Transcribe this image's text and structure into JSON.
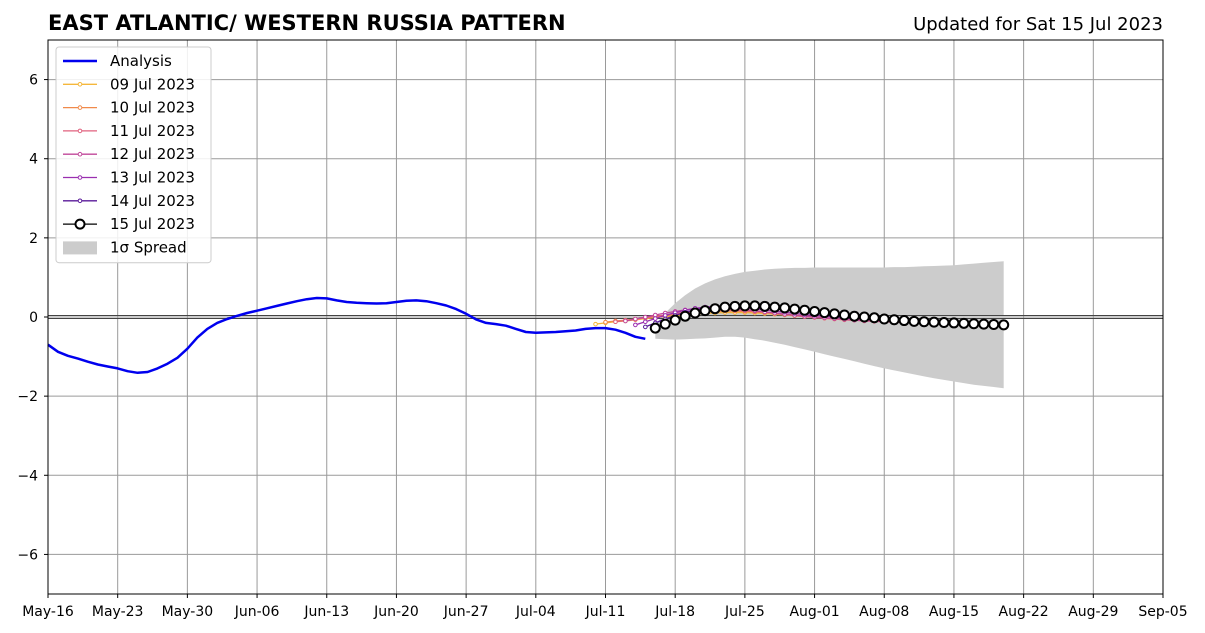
{
  "chart_data": {
    "type": "line",
    "title": "EAST ATLANTIC/ WESTERN RUSSIA PATTERN",
    "subtitle": "Updated for Sat 15 Jul 2023",
    "x_unit": "date",
    "x_range": [
      "2023-05-16",
      "2023-09-05"
    ],
    "ylim": [
      -7,
      7
    ],
    "y_ticks": [
      -6,
      -4,
      -2,
      0,
      2,
      4,
      6
    ],
    "y_tick_labels": [
      "−6",
      "−4",
      "−2",
      "0",
      "2",
      "4",
      "6"
    ],
    "x_ticks": [
      "2023-05-16",
      "2023-05-23",
      "2023-05-30",
      "2023-06-06",
      "2023-06-13",
      "2023-06-20",
      "2023-06-27",
      "2023-07-04",
      "2023-07-11",
      "2023-07-18",
      "2023-07-25",
      "2023-08-01",
      "2023-08-08",
      "2023-08-15",
      "2023-08-22",
      "2023-08-29",
      "2023-09-05"
    ],
    "x_tick_labels": [
      "May-16",
      "May-23",
      "May-30",
      "Jun-06",
      "Jun-13",
      "Jun-20",
      "Jun-27",
      "Jul-04",
      "Jul-11",
      "Jul-18",
      "Jul-25",
      "Aug-01",
      "Aug-08",
      "Aug-15",
      "Aug-22",
      "Aug-29",
      "Sep-05"
    ],
    "grid": true,
    "zero_line": true,
    "legend_position": "top-left",
    "series": [
      {
        "name": "Analysis",
        "color": "#0000ee",
        "marker": "none",
        "x": [
          "2023-05-16",
          "2023-05-17",
          "2023-05-18",
          "2023-05-19",
          "2023-05-20",
          "2023-05-21",
          "2023-05-22",
          "2023-05-23",
          "2023-05-24",
          "2023-05-25",
          "2023-05-26",
          "2023-05-27",
          "2023-05-28",
          "2023-05-29",
          "2023-05-30",
          "2023-05-31",
          "2023-06-01",
          "2023-06-02",
          "2023-06-03",
          "2023-06-04",
          "2023-06-05",
          "2023-06-06",
          "2023-06-07",
          "2023-06-08",
          "2023-06-09",
          "2023-06-10",
          "2023-06-11",
          "2023-06-12",
          "2023-06-13",
          "2023-06-14",
          "2023-06-15",
          "2023-06-16",
          "2023-06-17",
          "2023-06-18",
          "2023-06-19",
          "2023-06-20",
          "2023-06-21",
          "2023-06-22",
          "2023-06-23",
          "2023-06-24",
          "2023-06-25",
          "2023-06-26",
          "2023-06-27",
          "2023-06-28",
          "2023-06-29",
          "2023-06-30",
          "2023-07-01",
          "2023-07-02",
          "2023-07-03",
          "2023-07-04",
          "2023-07-05",
          "2023-07-06",
          "2023-07-07",
          "2023-07-08",
          "2023-07-09",
          "2023-07-10",
          "2023-07-11",
          "2023-07-12",
          "2023-07-13",
          "2023-07-14",
          "2023-07-15"
        ],
        "y": [
          -0.7,
          -0.88,
          -0.98,
          -1.05,
          -1.13,
          -1.2,
          -1.25,
          -1.3,
          -1.37,
          -1.41,
          -1.39,
          -1.3,
          -1.18,
          -1.03,
          -0.8,
          -0.52,
          -0.3,
          -0.15,
          -0.05,
          0.03,
          0.1,
          0.16,
          0.22,
          0.28,
          0.34,
          0.4,
          0.45,
          0.48,
          0.47,
          0.42,
          0.38,
          0.36,
          0.35,
          0.34,
          0.35,
          0.38,
          0.41,
          0.42,
          0.4,
          0.35,
          0.29,
          0.2,
          0.08,
          -0.06,
          -0.15,
          -0.18,
          -0.22,
          -0.3,
          -0.38,
          -0.4,
          -0.39,
          -0.38,
          -0.36,
          -0.34,
          -0.3,
          -0.28,
          -0.28,
          -0.32,
          -0.4,
          -0.5,
          -0.55
        ]
      },
      {
        "name": "09 Jul 2023",
        "color": "#f5b73b",
        "marker": "small-dot",
        "x": [
          "2023-07-10",
          "2023-07-11",
          "2023-07-12",
          "2023-07-13",
          "2023-07-14",
          "2023-07-15",
          "2023-07-16",
          "2023-07-17",
          "2023-07-18",
          "2023-07-19",
          "2023-07-20",
          "2023-07-21",
          "2023-07-22",
          "2023-07-23",
          "2023-07-24",
          "2023-07-25",
          "2023-07-26",
          "2023-07-27",
          "2023-07-28",
          "2023-07-29",
          "2023-07-30",
          "2023-07-31",
          "2023-08-01",
          "2023-08-02",
          "2023-08-03",
          "2023-08-04",
          "2023-08-05",
          "2023-08-06",
          "2023-08-07",
          "2023-08-08",
          "2023-08-09",
          "2023-08-10",
          "2023-08-11",
          "2023-08-12",
          "2023-08-13",
          "2023-08-14",
          "2023-08-15"
        ],
        "y": [
          -0.18,
          -0.15,
          -0.12,
          -0.1,
          -0.07,
          -0.04,
          -0.01,
          0.01,
          0.03,
          0.05,
          0.07,
          0.09,
          0.1,
          0.11,
          0.11,
          0.11,
          0.1,
          0.09,
          0.07,
          0.05,
          0.03,
          0.01,
          -0.01,
          -0.03,
          -0.05,
          -0.07,
          -0.08,
          -0.09,
          -0.1,
          -0.11,
          -0.12,
          -0.13,
          -0.14,
          -0.15,
          -0.16,
          -0.17,
          -0.18
        ]
      },
      {
        "name": "10 Jul 2023",
        "color": "#f08a4b",
        "marker": "small-dot",
        "x": [
          "2023-07-11",
          "2023-07-12",
          "2023-07-13",
          "2023-07-14",
          "2023-07-15",
          "2023-07-16",
          "2023-07-17",
          "2023-07-18",
          "2023-07-19",
          "2023-07-20",
          "2023-07-21",
          "2023-07-22",
          "2023-07-23",
          "2023-07-24",
          "2023-07-25",
          "2023-07-26",
          "2023-07-27",
          "2023-07-28",
          "2023-07-29",
          "2023-07-30",
          "2023-07-31",
          "2023-08-01",
          "2023-08-02",
          "2023-08-03",
          "2023-08-04",
          "2023-08-05",
          "2023-08-06",
          "2023-08-07",
          "2023-08-08",
          "2023-08-09",
          "2023-08-10",
          "2023-08-11",
          "2023-08-12",
          "2023-08-13",
          "2023-08-14",
          "2023-08-15",
          "2023-08-16"
        ],
        "y": [
          -0.13,
          -0.1,
          -0.08,
          -0.05,
          -0.02,
          0.01,
          0.04,
          0.07,
          0.09,
          0.11,
          0.13,
          0.14,
          0.15,
          0.15,
          0.14,
          0.13,
          0.11,
          0.09,
          0.07,
          0.05,
          0.02,
          0.0,
          -0.02,
          -0.04,
          -0.06,
          -0.07,
          -0.08,
          -0.09,
          -0.1,
          -0.11,
          -0.12,
          -0.13,
          -0.14,
          -0.15,
          -0.16,
          -0.17,
          -0.18
        ]
      },
      {
        "name": "11 Jul 2023",
        "color": "#e0607e",
        "marker": "small-dot",
        "x": [
          "2023-07-12",
          "2023-07-13",
          "2023-07-14",
          "2023-07-15",
          "2023-07-16",
          "2023-07-17",
          "2023-07-18",
          "2023-07-19",
          "2023-07-20",
          "2023-07-21",
          "2023-07-22",
          "2023-07-23",
          "2023-07-24",
          "2023-07-25",
          "2023-07-26",
          "2023-07-27",
          "2023-07-28",
          "2023-07-29",
          "2023-07-30",
          "2023-07-31",
          "2023-08-01",
          "2023-08-02",
          "2023-08-03",
          "2023-08-04",
          "2023-08-05",
          "2023-08-06",
          "2023-08-07",
          "2023-08-08",
          "2023-08-09",
          "2023-08-10",
          "2023-08-11",
          "2023-08-12",
          "2023-08-13",
          "2023-08-14",
          "2023-08-15",
          "2023-08-16",
          "2023-08-17"
        ],
        "y": [
          -0.12,
          -0.09,
          -0.06,
          -0.02,
          0.02,
          0.05,
          0.09,
          0.12,
          0.15,
          0.17,
          0.18,
          0.18,
          0.17,
          0.16,
          0.14,
          0.12,
          0.09,
          0.06,
          0.04,
          0.01,
          -0.01,
          -0.03,
          -0.05,
          -0.07,
          -0.08,
          -0.1,
          -0.11,
          -0.12,
          -0.13,
          -0.14,
          -0.15,
          -0.16,
          -0.17,
          -0.18,
          -0.19,
          -0.19,
          -0.2
        ]
      },
      {
        "name": "12 Jul 2023",
        "color": "#c0479a",
        "marker": "small-dot",
        "x": [
          "2023-07-13",
          "2023-07-14",
          "2023-07-15",
          "2023-07-16",
          "2023-07-17",
          "2023-07-18",
          "2023-07-19",
          "2023-07-20",
          "2023-07-21",
          "2023-07-22",
          "2023-07-23",
          "2023-07-24",
          "2023-07-25",
          "2023-07-26",
          "2023-07-27",
          "2023-07-28",
          "2023-07-29",
          "2023-07-30",
          "2023-07-31",
          "2023-08-01",
          "2023-08-02",
          "2023-08-03",
          "2023-08-04",
          "2023-08-05",
          "2023-08-06",
          "2023-08-07",
          "2023-08-08",
          "2023-08-09",
          "2023-08-10",
          "2023-08-11",
          "2023-08-12",
          "2023-08-13",
          "2023-08-14",
          "2023-08-15",
          "2023-08-16",
          "2023-08-17",
          "2023-08-18"
        ],
        "y": [
          -0.1,
          -0.05,
          0.0,
          0.05,
          0.1,
          0.14,
          0.18,
          0.21,
          0.23,
          0.24,
          0.23,
          0.21,
          0.19,
          0.16,
          0.13,
          0.1,
          0.07,
          0.04,
          0.02,
          0.0,
          -0.02,
          -0.04,
          -0.06,
          -0.08,
          -0.09,
          -0.1,
          -0.11,
          -0.12,
          -0.13,
          -0.14,
          -0.15,
          -0.16,
          -0.17,
          -0.18,
          -0.18,
          -0.19,
          -0.2
        ]
      },
      {
        "name": "13 Jul 2023",
        "color": "#9a2fb0",
        "marker": "small-dot",
        "x": [
          "2023-07-14",
          "2023-07-15",
          "2023-07-16",
          "2023-07-17",
          "2023-07-18",
          "2023-07-19",
          "2023-07-20",
          "2023-07-21",
          "2023-07-22",
          "2023-07-23",
          "2023-07-24",
          "2023-07-25",
          "2023-07-26",
          "2023-07-27",
          "2023-07-28",
          "2023-07-29",
          "2023-07-30",
          "2023-07-31",
          "2023-08-01",
          "2023-08-02",
          "2023-08-03",
          "2023-08-04",
          "2023-08-05",
          "2023-08-06",
          "2023-08-07",
          "2023-08-08",
          "2023-08-09",
          "2023-08-10",
          "2023-08-11",
          "2023-08-12",
          "2023-08-13",
          "2023-08-14",
          "2023-08-15",
          "2023-08-16",
          "2023-08-17",
          "2023-08-18",
          "2023-08-19"
        ],
        "y": [
          -0.2,
          -0.12,
          -0.04,
          0.04,
          0.11,
          0.17,
          0.22,
          0.25,
          0.27,
          0.27,
          0.26,
          0.24,
          0.21,
          0.18,
          0.15,
          0.12,
          0.09,
          0.06,
          0.04,
          0.02,
          0.0,
          -0.02,
          -0.04,
          -0.06,
          -0.07,
          -0.09,
          -0.1,
          -0.11,
          -0.12,
          -0.13,
          -0.14,
          -0.15,
          -0.16,
          -0.17,
          -0.18,
          -0.19,
          -0.2
        ]
      },
      {
        "name": "14 Jul 2023",
        "color": "#5a1a9a",
        "marker": "small-dot",
        "x": [
          "2023-07-15",
          "2023-07-16",
          "2023-07-17",
          "2023-07-18",
          "2023-07-19",
          "2023-07-20",
          "2023-07-21",
          "2023-07-22",
          "2023-07-23",
          "2023-07-24",
          "2023-07-25",
          "2023-07-26",
          "2023-07-27",
          "2023-07-28",
          "2023-07-29",
          "2023-07-30",
          "2023-07-31",
          "2023-08-01",
          "2023-08-02",
          "2023-08-03",
          "2023-08-04",
          "2023-08-05",
          "2023-08-06",
          "2023-08-07",
          "2023-08-08",
          "2023-08-09",
          "2023-08-10",
          "2023-08-11",
          "2023-08-12",
          "2023-08-13",
          "2023-08-14",
          "2023-08-15",
          "2023-08-16",
          "2023-08-17",
          "2023-08-18",
          "2023-08-19",
          "2023-08-20"
        ],
        "y": [
          -0.25,
          -0.15,
          -0.05,
          0.04,
          0.12,
          0.18,
          0.22,
          0.25,
          0.27,
          0.28,
          0.28,
          0.27,
          0.25,
          0.23,
          0.2,
          0.17,
          0.14,
          0.11,
          0.08,
          0.05,
          0.02,
          0.0,
          -0.02,
          -0.04,
          -0.06,
          -0.08,
          -0.1,
          -0.11,
          -0.12,
          -0.13,
          -0.14,
          -0.15,
          -0.16,
          -0.17,
          -0.18,
          -0.19,
          -0.2
        ]
      },
      {
        "name": "15 Jul 2023",
        "color": "#000000",
        "marker": "large-open-circle",
        "x": [
          "2023-07-16",
          "2023-07-17",
          "2023-07-18",
          "2023-07-19",
          "2023-07-20",
          "2023-07-21",
          "2023-07-22",
          "2023-07-23",
          "2023-07-24",
          "2023-07-25",
          "2023-07-26",
          "2023-07-27",
          "2023-07-28",
          "2023-07-29",
          "2023-07-30",
          "2023-07-31",
          "2023-08-01",
          "2023-08-02",
          "2023-08-03",
          "2023-08-04",
          "2023-08-05",
          "2023-08-06",
          "2023-08-07",
          "2023-08-08",
          "2023-08-09",
          "2023-08-10",
          "2023-08-11",
          "2023-08-12",
          "2023-08-13",
          "2023-08-14",
          "2023-08-15",
          "2023-08-16",
          "2023-08-17",
          "2023-08-18",
          "2023-08-19",
          "2023-08-20"
        ],
        "y": [
          -0.28,
          -0.18,
          -0.08,
          0.02,
          0.1,
          0.16,
          0.21,
          0.25,
          0.27,
          0.28,
          0.28,
          0.27,
          0.25,
          0.23,
          0.2,
          0.17,
          0.14,
          0.11,
          0.08,
          0.05,
          0.02,
          0.0,
          -0.02,
          -0.05,
          -0.07,
          -0.09,
          -0.11,
          -0.12,
          -0.13,
          -0.14,
          -0.15,
          -0.16,
          -0.17,
          -0.18,
          -0.19,
          -0.2
        ]
      }
    ],
    "spread": {
      "name": "1σ Spread",
      "color": "#cccccc",
      "x": [
        "2023-07-16",
        "2023-07-17",
        "2023-07-18",
        "2023-07-19",
        "2023-07-20",
        "2023-07-21",
        "2023-07-22",
        "2023-07-23",
        "2023-07-24",
        "2023-07-25",
        "2023-07-26",
        "2023-07-27",
        "2023-07-28",
        "2023-07-29",
        "2023-07-30",
        "2023-07-31",
        "2023-08-01",
        "2023-08-02",
        "2023-08-03",
        "2023-08-04",
        "2023-08-05",
        "2023-08-06",
        "2023-08-07",
        "2023-08-08",
        "2023-08-09",
        "2023-08-10",
        "2023-08-11",
        "2023-08-12",
        "2023-08-13",
        "2023-08-14",
        "2023-08-15",
        "2023-08-16",
        "2023-08-17",
        "2023-08-18",
        "2023-08-19",
        "2023-08-20"
      ],
      "upper": [
        -0.2,
        0.1,
        0.35,
        0.55,
        0.72,
        0.85,
        0.95,
        1.03,
        1.09,
        1.14,
        1.17,
        1.2,
        1.22,
        1.23,
        1.24,
        1.24,
        1.25,
        1.25,
        1.25,
        1.25,
        1.25,
        1.25,
        1.25,
        1.25,
        1.26,
        1.26,
        1.27,
        1.28,
        1.29,
        1.3,
        1.31,
        1.33,
        1.35,
        1.37,
        1.39,
        1.41
      ],
      "lower": [
        -0.55,
        -0.56,
        -0.57,
        -0.56,
        -0.55,
        -0.54,
        -0.52,
        -0.5,
        -0.5,
        -0.52,
        -0.56,
        -0.6,
        -0.65,
        -0.7,
        -0.76,
        -0.82,
        -0.88,
        -0.94,
        -1.0,
        -1.06,
        -1.12,
        -1.18,
        -1.24,
        -1.3,
        -1.35,
        -1.4,
        -1.45,
        -1.5,
        -1.55,
        -1.59,
        -1.63,
        -1.67,
        -1.71,
        -1.74,
        -1.77,
        -1.8
      ]
    }
  }
}
